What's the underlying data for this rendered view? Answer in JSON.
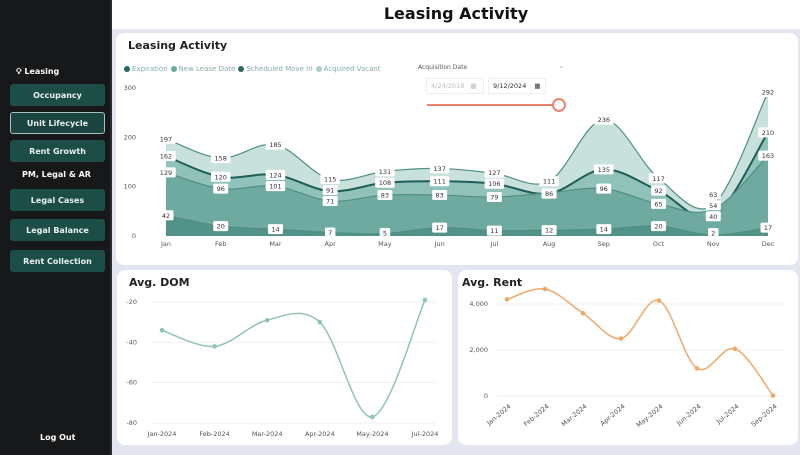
{
  "header": {
    "title": "Leasing Activity"
  },
  "sidebar": {
    "section1": "Leasing",
    "items1": [
      {
        "label": "Occupancy"
      },
      {
        "label": "Unit Lifecycle",
        "active": true
      },
      {
        "label": "Rent Growth"
      }
    ],
    "section2": "PM, Legal & AR",
    "items2": [
      {
        "label": "Legal Cases"
      },
      {
        "label": "Legal Balance"
      },
      {
        "label": "Rent Collection"
      }
    ],
    "logout": "Log Out"
  },
  "slicer": {
    "label": "Acquisition Date",
    "start": "4/24/2018",
    "end": "9/12/2024",
    "accent": "#e8826c"
  },
  "chart_data": [
    {
      "type": "area",
      "title": "Leasing Activity",
      "ylim": [
        0,
        300
      ],
      "yticks": [
        0,
        100,
        200,
        300
      ],
      "grid": false,
      "legend": "top-left",
      "categories": [
        "Jan",
        "Feb",
        "Mar",
        "Apr",
        "May",
        "Jun",
        "Jul",
        "Aug",
        "Sep",
        "Oct",
        "Nov",
        "Dec"
      ],
      "series": [
        {
          "name": "Acquired Vacant",
          "color": "#c6dfdb",
          "values": [
            197,
            158,
            185,
            115,
            131,
            137,
            127,
            111,
            236,
            117,
            63,
            292
          ]
        },
        {
          "name": "Scheduled Move In",
          "color": "#8dc0b7",
          "values": [
            162,
            120,
            124,
            91,
            108,
            111,
            106,
            86,
            135,
            92,
            40,
            210
          ]
        },
        {
          "name": "New Lease Date",
          "color": "#6ea99f",
          "values": [
            129,
            96,
            101,
            71,
            83,
            83,
            79,
            null,
            96,
            65,
            54,
            163
          ]
        },
        {
          "name": "Expiration",
          "color": "#4f9187",
          "values": [
            42,
            20,
            14,
            7,
            5,
            17,
            11,
            12,
            14,
            20,
            2,
            17
          ]
        }
      ]
    },
    {
      "type": "line",
      "title": "Avg. DOM",
      "ylim": [
        -80,
        -20
      ],
      "yticks": [
        -20,
        -40,
        -60,
        -80
      ],
      "color": "#8fc4b8",
      "categories": [
        "Jan-2024",
        "Feb-2024",
        "Mar-2024",
        "Apr-2024",
        "May-2024",
        "Jul-2024"
      ],
      "values": [
        -34,
        -42,
        -29,
        -30,
        -77,
        -19
      ]
    },
    {
      "type": "line",
      "title": "Avg. Rent",
      "ylim": [
        0,
        4000
      ],
      "yticks": [
        0,
        2000,
        4000
      ],
      "ytick_labels": [
        "0",
        "2,000",
        "4,000"
      ],
      "color": "#f0a868",
      "categories": [
        "Jan-2024",
        "Feb-2024",
        "Mar-2024",
        "Apr-2024",
        "May-2024",
        "Jun-2024",
        "Jul-2024",
        "Sep-2024"
      ],
      "values": [
        4200,
        4650,
        3600,
        2500,
        4150,
        1200,
        2050,
        20
      ]
    }
  ]
}
